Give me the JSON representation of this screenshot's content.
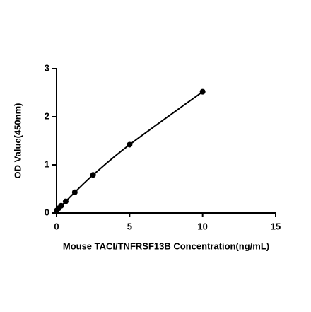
{
  "chart_data": {
    "type": "scatter",
    "x_label": "Mouse TACI/TNFRSF13B Concentration(ng/mL)",
    "y_label": "OD Value(450nm)",
    "series": [
      {
        "color": "#000000",
        "line": true,
        "x": [
          0,
          0.156,
          0.3125,
          0.625,
          1.25,
          2.5,
          5,
          10
        ],
        "values": [
          0.05,
          0.1,
          0.15,
          0.24,
          0.43,
          0.79,
          1.42,
          2.52
        ]
      }
    ],
    "xlim": [
      0,
      15
    ],
    "xticks": [
      0,
      5,
      10,
      15
    ],
    "ylim": [
      0,
      3
    ],
    "yticks": [
      0,
      1,
      2,
      3
    ],
    "grid": false
  }
}
